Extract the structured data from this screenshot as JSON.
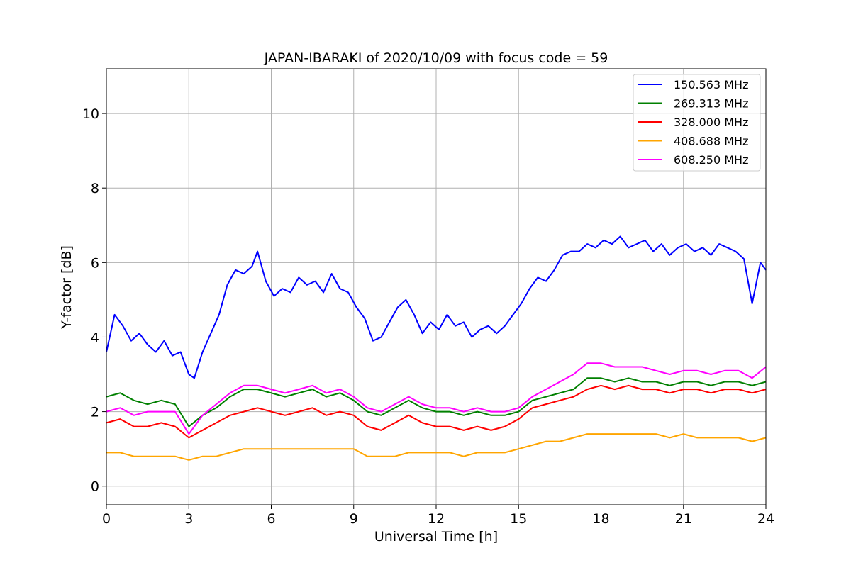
{
  "chart_data": {
    "type": "line",
    "title": "JAPAN-IBARAKI of 2020/10/09 with focus code = 59",
    "xlabel": "Universal Time [h]",
    "ylabel": "Y-factor [dB]",
    "xlim": [
      0,
      24
    ],
    "ylim": [
      -0.5,
      11.2
    ],
    "x_ticks": [
      0,
      3,
      6,
      9,
      12,
      15,
      18,
      21,
      24
    ],
    "y_ticks": [
      0,
      2,
      4,
      6,
      8,
      10
    ],
    "grid": true,
    "legend_position": "top-right",
    "series": [
      {
        "name": "150.563 MHz",
        "color": "#0000ff",
        "points": [
          [
            0,
            3.6
          ],
          [
            0.3,
            4.6
          ],
          [
            0.6,
            4.3
          ],
          [
            0.9,
            3.9
          ],
          [
            1.2,
            4.1
          ],
          [
            1.5,
            3.8
          ],
          [
            1.8,
            3.6
          ],
          [
            2.1,
            3.9
          ],
          [
            2.4,
            3.5
          ],
          [
            2.7,
            3.6
          ],
          [
            3.0,
            3.0
          ],
          [
            3.2,
            2.9
          ],
          [
            3.5,
            3.6
          ],
          [
            3.8,
            4.1
          ],
          [
            4.1,
            4.6
          ],
          [
            4.4,
            5.4
          ],
          [
            4.7,
            5.8
          ],
          [
            5.0,
            5.7
          ],
          [
            5.3,
            5.9
          ],
          [
            5.5,
            6.3
          ],
          [
            5.8,
            5.5
          ],
          [
            6.1,
            5.1
          ],
          [
            6.4,
            5.3
          ],
          [
            6.7,
            5.2
          ],
          [
            7.0,
            5.6
          ],
          [
            7.3,
            5.4
          ],
          [
            7.6,
            5.5
          ],
          [
            7.9,
            5.2
          ],
          [
            8.2,
            5.7
          ],
          [
            8.5,
            5.3
          ],
          [
            8.8,
            5.2
          ],
          [
            9.1,
            4.8
          ],
          [
            9.4,
            4.5
          ],
          [
            9.7,
            3.9
          ],
          [
            10.0,
            4.0
          ],
          [
            10.3,
            4.4
          ],
          [
            10.6,
            4.8
          ],
          [
            10.9,
            5.0
          ],
          [
            11.2,
            4.6
          ],
          [
            11.5,
            4.1
          ],
          [
            11.8,
            4.4
          ],
          [
            12.1,
            4.2
          ],
          [
            12.4,
            4.6
          ],
          [
            12.7,
            4.3
          ],
          [
            13.0,
            4.4
          ],
          [
            13.3,
            4.0
          ],
          [
            13.6,
            4.2
          ],
          [
            13.9,
            4.3
          ],
          [
            14.2,
            4.1
          ],
          [
            14.5,
            4.3
          ],
          [
            14.8,
            4.6
          ],
          [
            15.1,
            4.9
          ],
          [
            15.4,
            5.3
          ],
          [
            15.7,
            5.6
          ],
          [
            16.0,
            5.5
          ],
          [
            16.3,
            5.8
          ],
          [
            16.6,
            6.2
          ],
          [
            16.9,
            6.3
          ],
          [
            17.2,
            6.3
          ],
          [
            17.5,
            6.5
          ],
          [
            17.8,
            6.4
          ],
          [
            18.1,
            6.6
          ],
          [
            18.4,
            6.5
          ],
          [
            18.7,
            6.7
          ],
          [
            19.0,
            6.4
          ],
          [
            19.3,
            6.5
          ],
          [
            19.6,
            6.6
          ],
          [
            19.9,
            6.3
          ],
          [
            20.2,
            6.5
          ],
          [
            20.5,
            6.2
          ],
          [
            20.8,
            6.4
          ],
          [
            21.1,
            6.5
          ],
          [
            21.4,
            6.3
          ],
          [
            21.7,
            6.4
          ],
          [
            22.0,
            6.2
          ],
          [
            22.3,
            6.5
          ],
          [
            22.6,
            6.4
          ],
          [
            22.9,
            6.3
          ],
          [
            23.2,
            6.1
          ],
          [
            23.5,
            4.9
          ],
          [
            23.8,
            6.0
          ],
          [
            24.0,
            5.8
          ]
        ]
      },
      {
        "name": "269.313 MHz",
        "color": "#008000",
        "points": [
          [
            0,
            2.4
          ],
          [
            0.5,
            2.5
          ],
          [
            1.0,
            2.3
          ],
          [
            1.5,
            2.2
          ],
          [
            2.0,
            2.3
          ],
          [
            2.5,
            2.2
          ],
          [
            3.0,
            1.6
          ],
          [
            3.5,
            1.9
          ],
          [
            4.0,
            2.1
          ],
          [
            4.5,
            2.4
          ],
          [
            5.0,
            2.6
          ],
          [
            5.5,
            2.6
          ],
          [
            6.0,
            2.5
          ],
          [
            6.5,
            2.4
          ],
          [
            7.0,
            2.5
          ],
          [
            7.5,
            2.6
          ],
          [
            8.0,
            2.4
          ],
          [
            8.5,
            2.5
          ],
          [
            9.0,
            2.3
          ],
          [
            9.5,
            2.0
          ],
          [
            10.0,
            1.9
          ],
          [
            10.5,
            2.1
          ],
          [
            11.0,
            2.3
          ],
          [
            11.5,
            2.1
          ],
          [
            12.0,
            2.0
          ],
          [
            12.5,
            2.0
          ],
          [
            13.0,
            1.9
          ],
          [
            13.5,
            2.0
          ],
          [
            14.0,
            1.9
          ],
          [
            14.5,
            1.9
          ],
          [
            15.0,
            2.0
          ],
          [
            15.5,
            2.3
          ],
          [
            16.0,
            2.4
          ],
          [
            16.5,
            2.5
          ],
          [
            17.0,
            2.6
          ],
          [
            17.5,
            2.9
          ],
          [
            18.0,
            2.9
          ],
          [
            18.5,
            2.8
          ],
          [
            19.0,
            2.9
          ],
          [
            19.5,
            2.8
          ],
          [
            20.0,
            2.8
          ],
          [
            20.5,
            2.7
          ],
          [
            21.0,
            2.8
          ],
          [
            21.5,
            2.8
          ],
          [
            22.0,
            2.7
          ],
          [
            22.5,
            2.8
          ],
          [
            23.0,
            2.8
          ],
          [
            23.5,
            2.7
          ],
          [
            24.0,
            2.8
          ]
        ]
      },
      {
        "name": "328.000 MHz",
        "color": "#ff0000",
        "points": [
          [
            0,
            1.7
          ],
          [
            0.5,
            1.8
          ],
          [
            1.0,
            1.6
          ],
          [
            1.5,
            1.6
          ],
          [
            2.0,
            1.7
          ],
          [
            2.5,
            1.6
          ],
          [
            3.0,
            1.3
          ],
          [
            3.5,
            1.5
          ],
          [
            4.0,
            1.7
          ],
          [
            4.5,
            1.9
          ],
          [
            5.0,
            2.0
          ],
          [
            5.5,
            2.1
          ],
          [
            6.0,
            2.0
          ],
          [
            6.5,
            1.9
          ],
          [
            7.0,
            2.0
          ],
          [
            7.5,
            2.1
          ],
          [
            8.0,
            1.9
          ],
          [
            8.5,
            2.0
          ],
          [
            9.0,
            1.9
          ],
          [
            9.5,
            1.6
          ],
          [
            10.0,
            1.5
          ],
          [
            10.5,
            1.7
          ],
          [
            11.0,
            1.9
          ],
          [
            11.5,
            1.7
          ],
          [
            12.0,
            1.6
          ],
          [
            12.5,
            1.6
          ],
          [
            13.0,
            1.5
          ],
          [
            13.5,
            1.6
          ],
          [
            14.0,
            1.5
          ],
          [
            14.5,
            1.6
          ],
          [
            15.0,
            1.8
          ],
          [
            15.5,
            2.1
          ],
          [
            16.0,
            2.2
          ],
          [
            16.5,
            2.3
          ],
          [
            17.0,
            2.4
          ],
          [
            17.5,
            2.6
          ],
          [
            18.0,
            2.7
          ],
          [
            18.5,
            2.6
          ],
          [
            19.0,
            2.7
          ],
          [
            19.5,
            2.6
          ],
          [
            20.0,
            2.6
          ],
          [
            20.5,
            2.5
          ],
          [
            21.0,
            2.6
          ],
          [
            21.5,
            2.6
          ],
          [
            22.0,
            2.5
          ],
          [
            22.5,
            2.6
          ],
          [
            23.0,
            2.6
          ],
          [
            23.5,
            2.5
          ],
          [
            24.0,
            2.6
          ]
        ]
      },
      {
        "name": "408.688 MHz",
        "color": "#ffa500",
        "points": [
          [
            0,
            0.9
          ],
          [
            0.5,
            0.9
          ],
          [
            1.0,
            0.8
          ],
          [
            1.5,
            0.8
          ],
          [
            2.0,
            0.8
          ],
          [
            2.5,
            0.8
          ],
          [
            3.0,
            0.7
          ],
          [
            3.5,
            0.8
          ],
          [
            4.0,
            0.8
          ],
          [
            4.5,
            0.9
          ],
          [
            5.0,
            1.0
          ],
          [
            5.5,
            1.0
          ],
          [
            6.0,
            1.0
          ],
          [
            6.5,
            1.0
          ],
          [
            7.0,
            1.0
          ],
          [
            7.5,
            1.0
          ],
          [
            8.0,
            1.0
          ],
          [
            8.5,
            1.0
          ],
          [
            9.0,
            1.0
          ],
          [
            9.5,
            0.8
          ],
          [
            10.0,
            0.8
          ],
          [
            10.5,
            0.8
          ],
          [
            11.0,
            0.9
          ],
          [
            11.5,
            0.9
          ],
          [
            12.0,
            0.9
          ],
          [
            12.5,
            0.9
          ],
          [
            13.0,
            0.8
          ],
          [
            13.5,
            0.9
          ],
          [
            14.0,
            0.9
          ],
          [
            14.5,
            0.9
          ],
          [
            15.0,
            1.0
          ],
          [
            15.5,
            1.1
          ],
          [
            16.0,
            1.2
          ],
          [
            16.5,
            1.2
          ],
          [
            17.0,
            1.3
          ],
          [
            17.5,
            1.4
          ],
          [
            18.0,
            1.4
          ],
          [
            18.5,
            1.4
          ],
          [
            19.0,
            1.4
          ],
          [
            19.5,
            1.4
          ],
          [
            20.0,
            1.4
          ],
          [
            20.5,
            1.3
          ],
          [
            21.0,
            1.4
          ],
          [
            21.5,
            1.3
          ],
          [
            22.0,
            1.3
          ],
          [
            22.5,
            1.3
          ],
          [
            23.0,
            1.3
          ],
          [
            23.5,
            1.2
          ],
          [
            24.0,
            1.3
          ]
        ]
      },
      {
        "name": "608.250 MHz",
        "color": "#ff00ff",
        "points": [
          [
            0,
            2.0
          ],
          [
            0.5,
            2.1
          ],
          [
            1.0,
            1.9
          ],
          [
            1.5,
            2.0
          ],
          [
            2.0,
            2.0
          ],
          [
            2.5,
            2.0
          ],
          [
            3.0,
            1.4
          ],
          [
            3.5,
            1.9
          ],
          [
            4.0,
            2.2
          ],
          [
            4.5,
            2.5
          ],
          [
            5.0,
            2.7
          ],
          [
            5.5,
            2.7
          ],
          [
            6.0,
            2.6
          ],
          [
            6.5,
            2.5
          ],
          [
            7.0,
            2.6
          ],
          [
            7.5,
            2.7
          ],
          [
            8.0,
            2.5
          ],
          [
            8.5,
            2.6
          ],
          [
            9.0,
            2.4
          ],
          [
            9.5,
            2.1
          ],
          [
            10.0,
            2.0
          ],
          [
            10.5,
            2.2
          ],
          [
            11.0,
            2.4
          ],
          [
            11.5,
            2.2
          ],
          [
            12.0,
            2.1
          ],
          [
            12.5,
            2.1
          ],
          [
            13.0,
            2.0
          ],
          [
            13.5,
            2.1
          ],
          [
            14.0,
            2.0
          ],
          [
            14.5,
            2.0
          ],
          [
            15.0,
            2.1
          ],
          [
            15.5,
            2.4
          ],
          [
            16.0,
            2.6
          ],
          [
            16.5,
            2.8
          ],
          [
            17.0,
            3.0
          ],
          [
            17.5,
            3.3
          ],
          [
            18.0,
            3.3
          ],
          [
            18.5,
            3.2
          ],
          [
            19.0,
            3.2
          ],
          [
            19.5,
            3.2
          ],
          [
            20.0,
            3.1
          ],
          [
            20.5,
            3.0
          ],
          [
            21.0,
            3.1
          ],
          [
            21.5,
            3.1
          ],
          [
            22.0,
            3.0
          ],
          [
            22.5,
            3.1
          ],
          [
            23.0,
            3.1
          ],
          [
            23.5,
            2.9
          ],
          [
            24.0,
            3.2
          ]
        ]
      }
    ]
  }
}
